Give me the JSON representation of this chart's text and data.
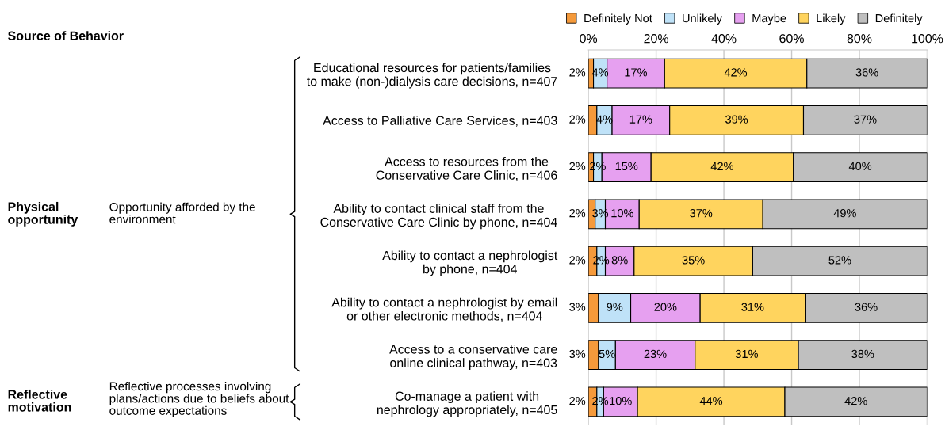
{
  "chart_data": {
    "type": "bar",
    "orientation": "horizontal",
    "stacked": true,
    "categories": [
      "Educational resources for patients/families\nto make (non-)dialysis care decisions, n=407",
      "Access to Palliative Care Services, n=403",
      "Access to resources from the\nConservative Care Clinic, n=406",
      "Ability to contact clinical staff from the\nConservative Care Clinic by phone, n=404",
      "Ability to contact a nephrologist\nby phone, n=404",
      "Ability to contact a nephrologist by email\nor other electronic methods, n=404",
      "Access to a conservative care\nonline clinical pathway, n=403",
      "Co-manage a patient with\nnephrology appropriately, n=405"
    ],
    "series": [
      {
        "name": "Definitely Not",
        "color": "#f59a3b",
        "values": [
          1.5,
          2.5,
          1.5,
          2,
          2.5,
          3,
          3,
          2.5
        ],
        "value_labels": [
          "2%",
          "2%",
          "2%",
          "2%",
          "2%",
          "3%",
          "3%",
          "2%"
        ]
      },
      {
        "name": "Unlikely",
        "color": "#bfe2f8",
        "values": [
          4,
          4.5,
          2.5,
          3,
          2.5,
          9.5,
          5,
          2
        ],
        "value_labels": [
          "4%",
          "4%",
          "2%",
          "3%",
          "2%",
          "9%",
          "5%",
          "2%"
        ]
      },
      {
        "name": "Maybe",
        "color": "#e6a0f0",
        "values": [
          17,
          17,
          14.5,
          10,
          8.5,
          20.5,
          23.5,
          10
        ],
        "value_labels": [
          "17%",
          "17%",
          "15%",
          "10%",
          "8%",
          "20%",
          "23%",
          "10%"
        ]
      },
      {
        "name": "Likely",
        "color": "#ffd45e",
        "values": [
          42,
          39.5,
          42,
          36.5,
          35,
          31,
          30.5,
          43.5
        ],
        "value_labels": [
          "42%",
          "39%",
          "42%",
          "37%",
          "35%",
          "31%",
          "31%",
          "44%"
        ]
      },
      {
        "name": "Definitely",
        "color": "#bfbfbf",
        "values": [
          35.5,
          36.5,
          39.5,
          48.5,
          51.5,
          36,
          38,
          42
        ],
        "value_labels": [
          "36%",
          "37%",
          "40%",
          "49%",
          "52%",
          "36%",
          "38%",
          "42%"
        ]
      }
    ],
    "xlim": [
      0,
      100
    ],
    "xticks": [
      {
        "value": 0,
        "label": "0%"
      },
      {
        "value": 20,
        "label": "20%"
      },
      {
        "value": 40,
        "label": "40%"
      },
      {
        "value": 60,
        "label": "60%"
      },
      {
        "value": 80,
        "label": "80%"
      },
      {
        "value": 100,
        "label": "100%"
      }
    ],
    "grid": "x",
    "legend": "top",
    "annotations": [
      "Source of Behavior",
      "Physical\nopportunity",
      "Opportunity afforded by the\nenvironment",
      "Reflective\nmotivation",
      "Reflective processes involving\nplans/actions due to beliefs about\noutcome expectations"
    ]
  }
}
